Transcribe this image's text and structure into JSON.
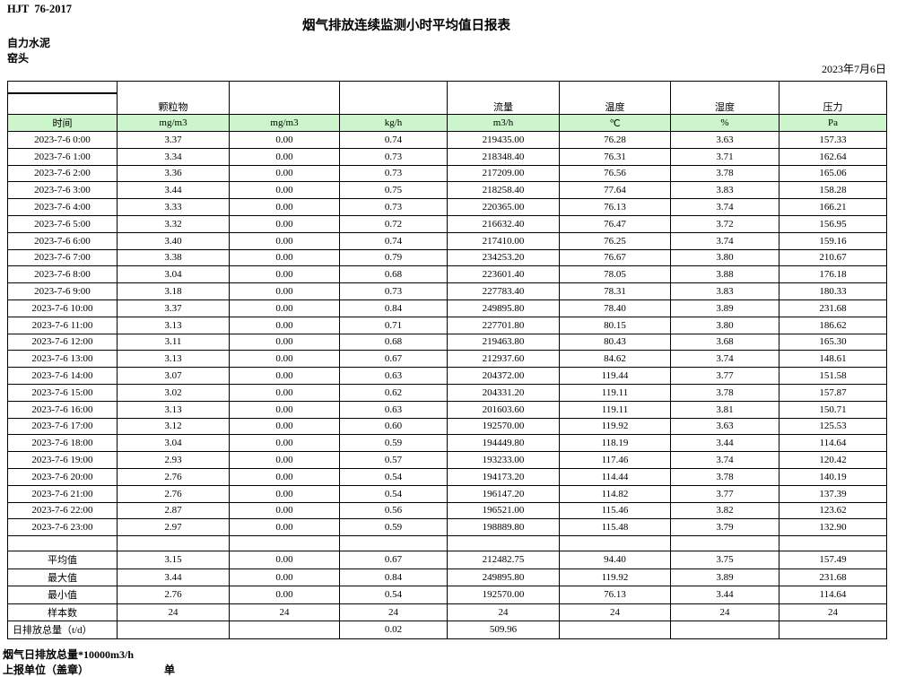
{
  "header": {
    "doc_code": "HJT  76-2017",
    "title": "烟气排放连续监测小时平均值日报表",
    "company": "自力水泥",
    "station": "窑头",
    "date": "2023年7月6日"
  },
  "colors": {
    "header_green": "#ccf5cc"
  },
  "table": {
    "group_headers": [
      "",
      "颗粒物",
      "",
      "",
      "流量",
      "温度",
      "湿度",
      "压力"
    ],
    "unit_row": [
      "时间",
      "mg/m3",
      "mg/m3",
      "kg/h",
      "m3/h",
      "℃",
      "%",
      "Pa"
    ],
    "rows": [
      [
        "2023-7-6 0:00",
        "3.37",
        "0.00",
        "0.74",
        "219435.00",
        "76.28",
        "3.63",
        "157.33"
      ],
      [
        "2023-7-6 1:00",
        "3.34",
        "0.00",
        "0.73",
        "218348.40",
        "76.31",
        "3.71",
        "162.64"
      ],
      [
        "2023-7-6 2:00",
        "3.36",
        "0.00",
        "0.73",
        "217209.00",
        "76.56",
        "3.78",
        "165.06"
      ],
      [
        "2023-7-6 3:00",
        "3.44",
        "0.00",
        "0.75",
        "218258.40",
        "77.64",
        "3.83",
        "158.28"
      ],
      [
        "2023-7-6 4:00",
        "3.33",
        "0.00",
        "0.73",
        "220365.00",
        "76.13",
        "3.74",
        "166.21"
      ],
      [
        "2023-7-6 5:00",
        "3.32",
        "0.00",
        "0.72",
        "216632.40",
        "76.47",
        "3.72",
        "156.95"
      ],
      [
        "2023-7-6 6:00",
        "3.40",
        "0.00",
        "0.74",
        "217410.00",
        "76.25",
        "3.74",
        "159.16"
      ],
      [
        "2023-7-6 7:00",
        "3.38",
        "0.00",
        "0.79",
        "234253.20",
        "76.67",
        "3.80",
        "210.67"
      ],
      [
        "2023-7-6 8:00",
        "3.04",
        "0.00",
        "0.68",
        "223601.40",
        "78.05",
        "3.88",
        "176.18"
      ],
      [
        "2023-7-6 9:00",
        "3.18",
        "0.00",
        "0.73",
        "227783.40",
        "78.31",
        "3.83",
        "180.33"
      ],
      [
        "2023-7-6 10:00",
        "3.37",
        "0.00",
        "0.84",
        "249895.80",
        "78.40",
        "3.89",
        "231.68"
      ],
      [
        "2023-7-6 11:00",
        "3.13",
        "0.00",
        "0.71",
        "227701.80",
        "80.15",
        "3.80",
        "186.62"
      ],
      [
        "2023-7-6 12:00",
        "3.11",
        "0.00",
        "0.68",
        "219463.80",
        "80.43",
        "3.68",
        "165.30"
      ],
      [
        "2023-7-6 13:00",
        "3.13",
        "0.00",
        "0.67",
        "212937.60",
        "84.62",
        "3.74",
        "148.61"
      ],
      [
        "2023-7-6 14:00",
        "3.07",
        "0.00",
        "0.63",
        "204372.00",
        "119.44",
        "3.77",
        "151.58"
      ],
      [
        "2023-7-6 15:00",
        "3.02",
        "0.00",
        "0.62",
        "204331.20",
        "119.11",
        "3.78",
        "157.87"
      ],
      [
        "2023-7-6 16:00",
        "3.13",
        "0.00",
        "0.63",
        "201603.60",
        "119.11",
        "3.81",
        "150.71"
      ],
      [
        "2023-7-6 17:00",
        "3.12",
        "0.00",
        "0.60",
        "192570.00",
        "119.92",
        "3.63",
        "125.53"
      ],
      [
        "2023-7-6 18:00",
        "3.04",
        "0.00",
        "0.59",
        "194449.80",
        "118.19",
        "3.44",
        "114.64"
      ],
      [
        "2023-7-6 19:00",
        "2.93",
        "0.00",
        "0.57",
        "193233.00",
        "117.46",
        "3.74",
        "120.42"
      ],
      [
        "2023-7-6 20:00",
        "2.76",
        "0.00",
        "0.54",
        "194173.20",
        "114.44",
        "3.78",
        "140.19"
      ],
      [
        "2023-7-6 21:00",
        "2.76",
        "0.00",
        "0.54",
        "196147.20",
        "114.82",
        "3.77",
        "137.39"
      ],
      [
        "2023-7-6 22:00",
        "2.87",
        "0.00",
        "0.56",
        "196521.00",
        "115.46",
        "3.82",
        "123.62"
      ],
      [
        "2023-7-6 23:00",
        "2.97",
        "0.00",
        "0.59",
        "198889.80",
        "115.48",
        "3.79",
        "132.90"
      ]
    ],
    "summary_rows": [
      [
        "平均值",
        "3.15",
        "0.00",
        "0.67",
        "212482.75",
        "94.40",
        "3.75",
        "157.49"
      ],
      [
        "最大值",
        "3.44",
        "0.00",
        "0.84",
        "249895.80",
        "119.92",
        "3.89",
        "231.68"
      ],
      [
        "最小值",
        "2.76",
        "0.00",
        "0.54",
        "192570.00",
        "76.13",
        "3.44",
        "114.64"
      ],
      [
        "样本数",
        "24",
        "24",
        "24",
        "24",
        "24",
        "24",
        "24"
      ],
      [
        "日排放总量（t/d）",
        "",
        "",
        "0.02",
        "509.96",
        "",
        "",
        ""
      ]
    ]
  },
  "footer": {
    "note": "烟气日排放总量*10000m3/h",
    "report_unit_label": "上报单位（盖章）",
    "unit_label": "单位"
  }
}
